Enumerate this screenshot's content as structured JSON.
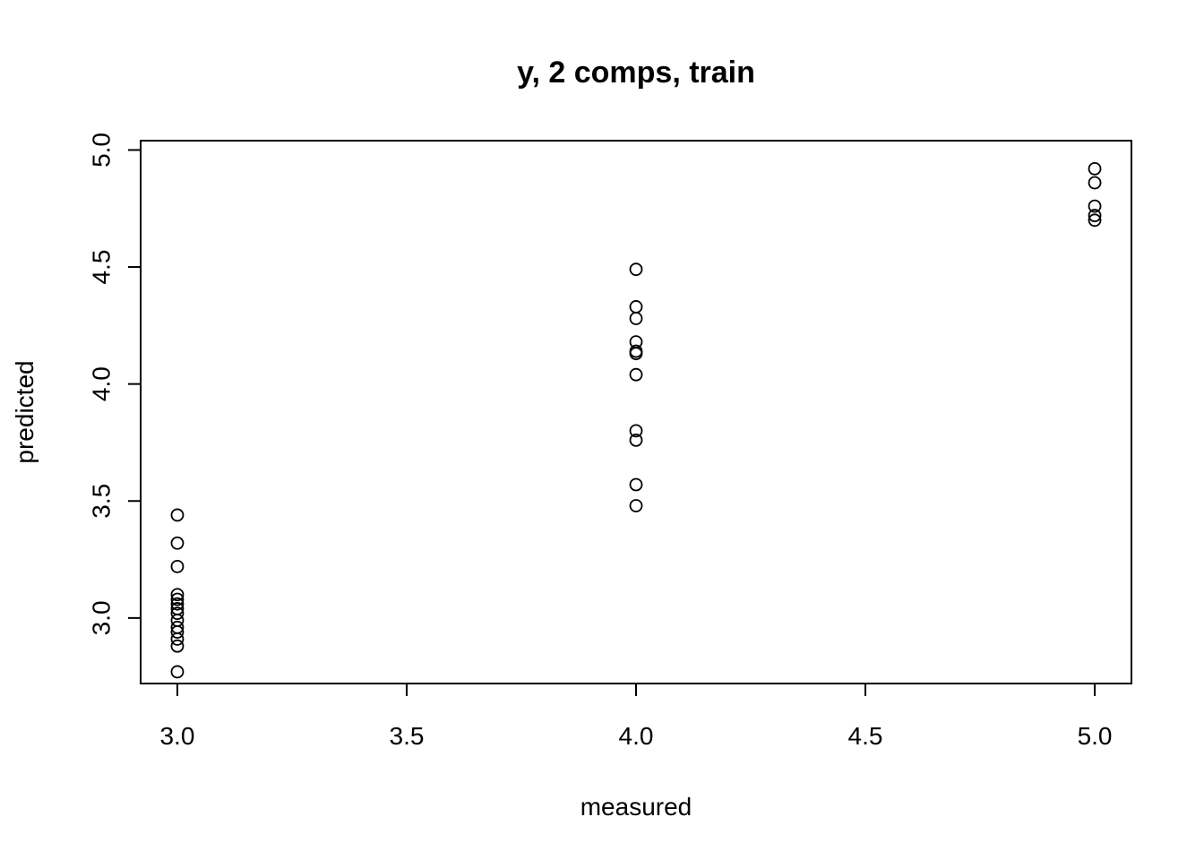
{
  "chart_data": {
    "type": "scatter",
    "title": "y, 2 comps, train",
    "xlabel": "measured",
    "ylabel": "predicted",
    "xlim": [
      2.92,
      5.08
    ],
    "ylim": [
      2.72,
      5.04
    ],
    "xticks": [
      3.0,
      3.5,
      4.0,
      4.5,
      5.0
    ],
    "xtick_labels": [
      "3.0",
      "3.5",
      "4.0",
      "4.5",
      "5.0"
    ],
    "yticks": [
      3.0,
      3.5,
      4.0,
      4.5,
      5.0
    ],
    "ytick_labels": [
      "3.0",
      "3.5",
      "4.0",
      "4.5",
      "5.0"
    ],
    "marker": "open-circle",
    "grid": false,
    "legend": "none",
    "points": [
      {
        "x": 3,
        "y": 3.44
      },
      {
        "x": 3,
        "y": 3.32
      },
      {
        "x": 3,
        "y": 3.22
      },
      {
        "x": 3,
        "y": 3.1
      },
      {
        "x": 3,
        "y": 3.08
      },
      {
        "x": 3,
        "y": 3.06
      },
      {
        "x": 3,
        "y": 3.04
      },
      {
        "x": 3,
        "y": 3.02
      },
      {
        "x": 3,
        "y": 2.99
      },
      {
        "x": 3,
        "y": 2.96
      },
      {
        "x": 3,
        "y": 2.94
      },
      {
        "x": 3,
        "y": 2.91
      },
      {
        "x": 3,
        "y": 2.88
      },
      {
        "x": 3,
        "y": 2.77
      },
      {
        "x": 4,
        "y": 4.49
      },
      {
        "x": 4,
        "y": 4.33
      },
      {
        "x": 4,
        "y": 4.28
      },
      {
        "x": 4,
        "y": 4.18
      },
      {
        "x": 4,
        "y": 4.14
      },
      {
        "x": 4,
        "y": 4.13
      },
      {
        "x": 4,
        "y": 4.04
      },
      {
        "x": 4,
        "y": 3.8
      },
      {
        "x": 4,
        "y": 3.76
      },
      {
        "x": 4,
        "y": 3.57
      },
      {
        "x": 4,
        "y": 3.48
      },
      {
        "x": 5,
        "y": 4.92
      },
      {
        "x": 5,
        "y": 4.86
      },
      {
        "x": 5,
        "y": 4.76
      },
      {
        "x": 5,
        "y": 4.72
      },
      {
        "x": 5,
        "y": 4.7
      }
    ]
  }
}
